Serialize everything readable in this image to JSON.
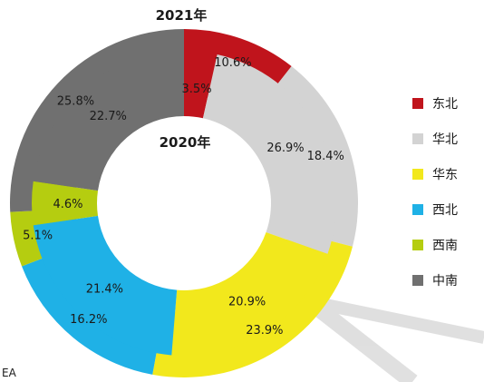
{
  "chart_data": {
    "type": "pie",
    "title_outer": "2021年",
    "title_inner": "2020年",
    "categories": [
      "东北",
      "华北",
      "华东",
      "中南",
      "西北",
      "西南"
    ],
    "colors": {
      "东北": "#c0141c",
      "华北": "#d3d3d3",
      "华东": "#f2e81c",
      "西北": "#1fb1e6",
      "西南": "#b5cd10",
      "中南": "#707070"
    },
    "series": [
      {
        "name": "2021年",
        "values": {
          "东北": 10.6,
          "华北": 18.4,
          "华东": 23.9,
          "西北": 16.2,
          "西南": 5.1,
          "中南": 25.8
        }
      },
      {
        "name": "2020年",
        "values": {
          "东北": 3.5,
          "华北": 26.9,
          "华东": 20.9,
          "西北": 21.4,
          "西南": 4.6,
          "中南": 22.7
        }
      }
    ],
    "order": [
      "东北",
      "华北",
      "华东",
      "西北",
      "西南",
      "中南"
    ],
    "legend": [
      "东北",
      "华北",
      "华东",
      "西北",
      "西南",
      "中南"
    ],
    "legend_position": "right",
    "source_text": "EA"
  }
}
